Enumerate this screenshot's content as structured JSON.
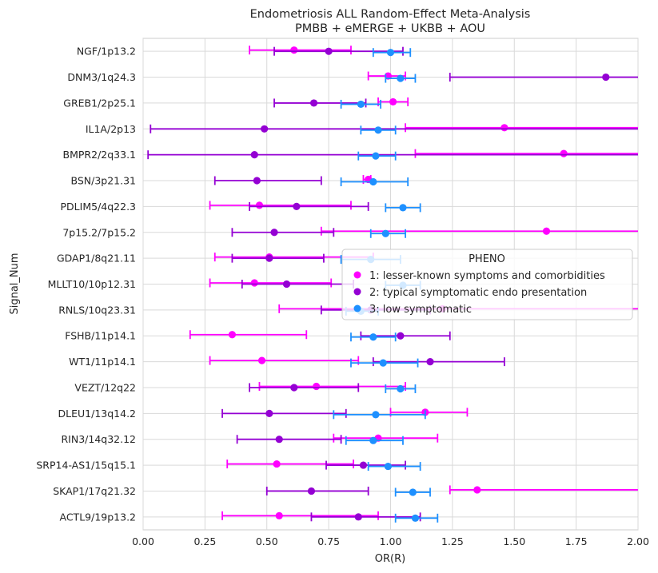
{
  "chart_data": {
    "type": "scatter",
    "title": "Endometriosis ALL Random-Effect Meta-Analysis",
    "subtitle": "PMBB + eMERGE + UKBB + AOU",
    "xlabel": "OR(R)",
    "ylabel": "Signal_Num",
    "xlim": [
      0.0,
      2.0
    ],
    "xticks": [
      "0.00",
      "0.25",
      "0.50",
      "0.75",
      "1.00",
      "1.25",
      "1.50",
      "1.75",
      "2.00"
    ],
    "grid": true,
    "legend_title": "PHENO",
    "legend_position": "center-right",
    "categories": [
      "NGF/1p13.2",
      "DNM3/1q24.3",
      "GREB1/2p25.1",
      "IL1A/2p13",
      "BMPR2/2q33.1",
      "BSN/3p21.31",
      "PDLIM5/4q22.3",
      "7p15.2/7p15.2",
      "GDAP1/8q21.11",
      "MLLT10/10p12.31",
      "RNLS/10q23.31",
      "FSHB/11p14.1",
      "WT1/11p14.1",
      "VEZT/12q22",
      "DLEU1/13q14.2",
      "RIN3/14q32.12",
      "SRP14-AS1/15q15.1",
      "SKAP1/17q21.32",
      "ACTL9/19p13.2"
    ],
    "series": [
      {
        "name": "1: lesser-known symptoms and comorbidities",
        "color": "#ff00ff",
        "or": [
          0.61,
          0.99,
          1.01,
          1.46,
          1.7,
          0.91,
          0.47,
          1.63,
          0.51,
          0.45,
          1.21,
          0.36,
          0.48,
          0.7,
          1.14,
          0.95,
          0.54,
          1.35,
          0.55
        ],
        "lower": [
          0.43,
          0.91,
          0.95,
          1.06,
          1.1,
          0.89,
          0.27,
          0.72,
          0.29,
          0.27,
          0.55,
          0.19,
          0.27,
          0.47,
          1.0,
          0.77,
          0.34,
          1.24,
          0.32
        ],
        "upper": [
          0.84,
          1.06,
          1.07,
          2.2,
          2.2,
          0.92,
          0.84,
          2.2,
          0.93,
          0.76,
          2.2,
          0.66,
          0.87,
          1.06,
          1.31,
          1.19,
          0.85,
          2.2,
          0.95
        ]
      },
      {
        "name": "2: typical symptomatic endo presentation",
        "color": "#9400d3",
        "or": [
          0.75,
          1.87,
          0.69,
          0.49,
          0.45,
          0.46,
          0.62,
          0.53,
          0.51,
          0.58,
          0.92,
          1.04,
          1.16,
          0.61,
          0.51,
          0.55,
          0.89,
          0.68,
          0.87
        ],
        "lower": [
          0.53,
          1.24,
          0.53,
          0.03,
          0.02,
          0.29,
          0.43,
          0.36,
          0.36,
          0.4,
          0.72,
          0.88,
          0.93,
          0.43,
          0.32,
          0.38,
          0.74,
          0.5,
          0.68
        ],
        "upper": [
          1.05,
          2.2,
          0.9,
          2.2,
          2.2,
          0.72,
          0.91,
          0.77,
          0.73,
          0.85,
          1.16,
          1.24,
          1.46,
          0.87,
          0.82,
          0.8,
          1.06,
          0.91,
          1.12
        ]
      },
      {
        "name": "3: low symptomatic",
        "color": "#1e90ff",
        "or": [
          1.0,
          1.04,
          0.88,
          0.95,
          0.94,
          0.93,
          1.05,
          0.98,
          0.92,
          1.05,
          0.88,
          0.93,
          0.97,
          1.04,
          0.94,
          0.93,
          0.99,
          1.09,
          1.1
        ],
        "lower": [
          0.93,
          0.98,
          0.8,
          0.88,
          0.87,
          0.8,
          0.98,
          0.92,
          0.8,
          0.98,
          0.82,
          0.84,
          0.84,
          0.98,
          0.77,
          0.82,
          0.91,
          1.02,
          1.02
        ],
        "upper": [
          1.08,
          1.1,
          0.96,
          1.02,
          1.02,
          1.07,
          1.12,
          1.06,
          1.04,
          1.12,
          0.95,
          1.02,
          1.11,
          1.1,
          1.14,
          1.05,
          1.12,
          1.16,
          1.19
        ]
      }
    ]
  }
}
